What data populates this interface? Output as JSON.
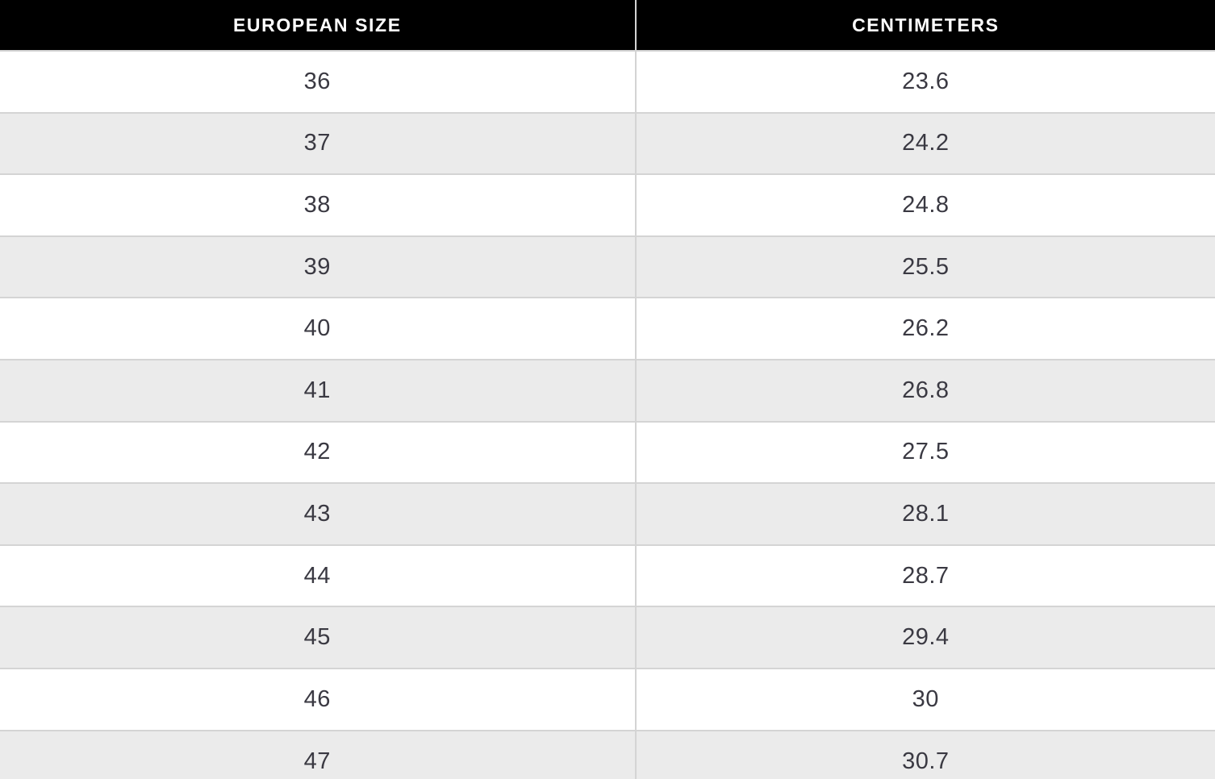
{
  "colors": {
    "header_bg": "#000000",
    "header_text": "#ffffff",
    "row_bg": "#ffffff",
    "row_alt_bg": "#ebebeb",
    "border": "#d4d4d4",
    "cell_text": "#3a3942"
  },
  "chart_data": {
    "type": "table",
    "columns": [
      "EUROPEAN SIZE",
      "CENTIMETERS"
    ],
    "rows": [
      [
        "36",
        "23.6"
      ],
      [
        "37",
        "24.2"
      ],
      [
        "38",
        "24.8"
      ],
      [
        "39",
        "25.5"
      ],
      [
        "40",
        "26.2"
      ],
      [
        "41",
        "26.8"
      ],
      [
        "42",
        "27.5"
      ],
      [
        "43",
        "28.1"
      ],
      [
        "44",
        "28.7"
      ],
      [
        "45",
        "29.4"
      ],
      [
        "46",
        "30"
      ],
      [
        "47",
        "30.7"
      ]
    ]
  }
}
